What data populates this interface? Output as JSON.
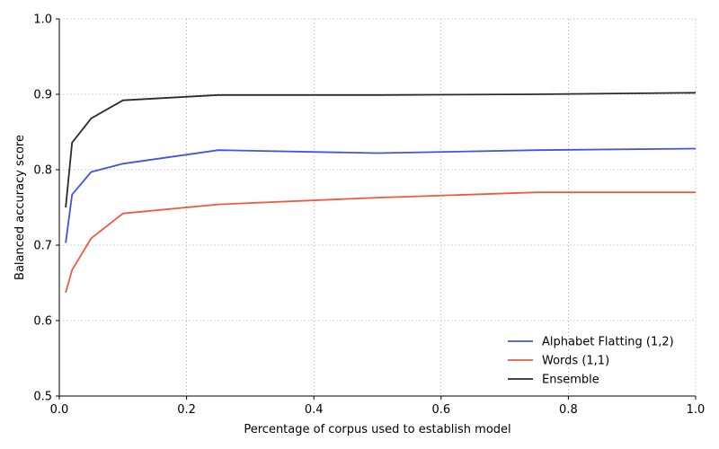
{
  "chart_data": {
    "type": "line",
    "title": "",
    "xlabel": "Percentage of corpus used to establish model",
    "ylabel": "Balanced accuracy score",
    "xlim": [
      0.0,
      1.0
    ],
    "ylim": [
      0.5,
      1.0
    ],
    "xticks": [
      "0.0",
      "0.2",
      "0.4",
      "0.6",
      "0.8",
      "1.0"
    ],
    "yticks": [
      "0.5",
      "0.6",
      "0.7",
      "0.8",
      "0.9",
      "1.0"
    ],
    "grid": true,
    "legend_position": "bottom-right",
    "x": [
      0.01,
      0.02,
      0.05,
      0.1,
      0.25,
      0.5,
      0.75,
      1.0
    ],
    "series": [
      {
        "name": "Alphabet Flatting (1,2)",
        "color": "#4055e8",
        "values": [
          0.703,
          0.767,
          0.797,
          0.808,
          0.826,
          0.822,
          0.826,
          0.828
        ]
      },
      {
        "name": "Words (1,1)",
        "color": "#ef5a3f",
        "values": [
          0.637,
          0.667,
          0.709,
          0.742,
          0.754,
          0.763,
          0.77,
          0.77
        ]
      },
      {
        "name": "Ensemble",
        "color": "#2b2b2b",
        "values": [
          0.75,
          0.836,
          0.868,
          0.892,
          0.899,
          0.899,
          0.9,
          0.902
        ]
      }
    ]
  }
}
